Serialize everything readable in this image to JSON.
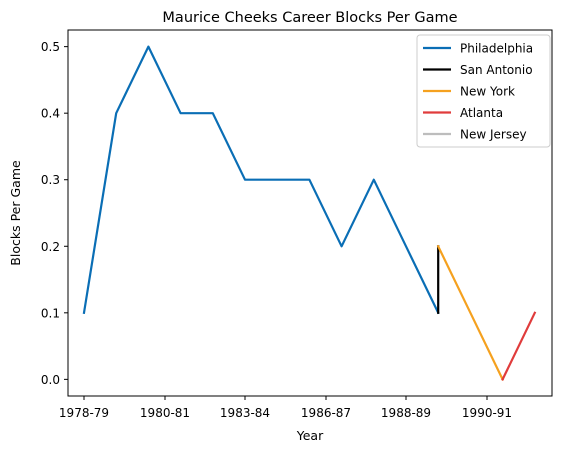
{
  "chart_data": {
    "type": "line",
    "title": "Maurice Cheeks Career Blocks Per Game",
    "xlabel": "Year",
    "ylabel": "Blocks Per Game",
    "x_tick_labels": [
      "1978-79",
      "1980-81",
      "1983-84",
      "1986-87",
      "1988-89",
      "1990-91"
    ],
    "y_ticks": [
      0.0,
      0.1,
      0.2,
      0.3,
      0.4,
      0.5
    ],
    "y_tick_labels": [
      "0.0",
      "0.1",
      "0.2",
      "0.3",
      "0.4",
      "0.5"
    ],
    "ylim": [
      -0.025,
      0.525
    ],
    "legend_position": "top-right",
    "series": [
      {
        "name": "Philadelphia",
        "color": "#0a6eb5",
        "x": [
          0,
          1,
          2,
          3,
          4,
          5,
          6,
          7,
          8,
          9,
          10,
          11
        ],
        "values": [
          0.1,
          0.4,
          0.5,
          0.4,
          0.4,
          0.3,
          0.3,
          0.3,
          0.2,
          0.3,
          0.2,
          0.1
        ]
      },
      {
        "name": "San Antonio",
        "color": "#000000",
        "x": [
          11,
          11
        ],
        "values": [
          0.1,
          0.2
        ]
      },
      {
        "name": "New York",
        "color": "#f5a11f",
        "x": [
          11,
          12,
          13
        ],
        "values": [
          0.2,
          0.1,
          0.0
        ]
      },
      {
        "name": "Atlanta",
        "color": "#e03c3c",
        "x": [
          13,
          14
        ],
        "values": [
          0.0,
          0.1
        ]
      },
      {
        "name": "New Jersey",
        "color": "#bdbdbd",
        "x": [],
        "values": []
      }
    ]
  }
}
